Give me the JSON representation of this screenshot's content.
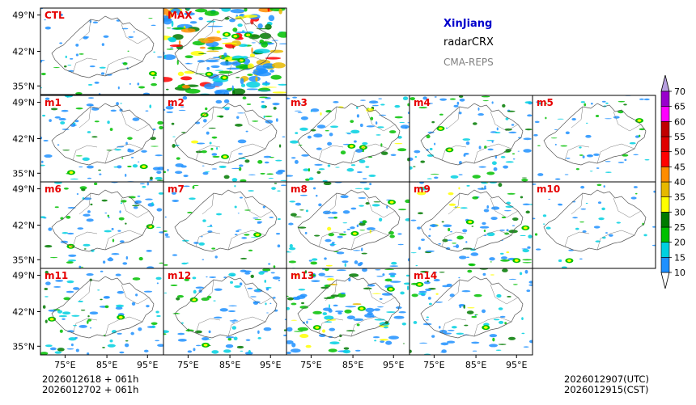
{
  "header": {
    "region": "XinJiang",
    "product": "radarCRX",
    "system": "CMA-REPS",
    "region_color": "#0000cc",
    "system_color": "#808080"
  },
  "panels": [
    {
      "label": "CTL",
      "intensity": 0.18
    },
    {
      "label": "MAX",
      "intensity": 1.0
    },
    {
      "label": "m1",
      "intensity": 0.32
    },
    {
      "label": "m2",
      "intensity": 0.38
    },
    {
      "label": "m3",
      "intensity": 0.4
    },
    {
      "label": "m4",
      "intensity": 0.34
    },
    {
      "label": "m5",
      "intensity": 0.2
    },
    {
      "label": "m6",
      "intensity": 0.3
    },
    {
      "label": "m7",
      "intensity": 0.2
    },
    {
      "label": "m8",
      "intensity": 0.36
    },
    {
      "label": "m9",
      "intensity": 0.42
    },
    {
      "label": "m10",
      "intensity": 0.12
    },
    {
      "label": "m11",
      "intensity": 0.34
    },
    {
      "label": "m12",
      "intensity": 0.38
    },
    {
      "label": "m13",
      "intensity": 0.55
    },
    {
      "label": "m14",
      "intensity": 0.36
    }
  ],
  "axes": {
    "lat_ticks": [
      "49°N",
      "42°N",
      "35°N"
    ],
    "lon_ticks": [
      "75°E",
      "85°E",
      "95°E"
    ]
  },
  "colorbar": {
    "levels": [
      "10",
      "15",
      "20",
      "25",
      "30",
      "35",
      "40",
      "45",
      "50",
      "55",
      "60",
      "65",
      "70"
    ],
    "colors": [
      "#1e90ff",
      "#00d0e0",
      "#00c000",
      "#007a00",
      "#ffff00",
      "#e6b800",
      "#ff8c00",
      "#ff0000",
      "#e00000",
      "#c00000",
      "#ff00ff",
      "#9900cc",
      "#b8a0e0",
      "#ffffff"
    ]
  },
  "time_info": {
    "init_line1": "2026012618  +  061h",
    "init_line2": "2026012702  +  061h",
    "valid_utc": "2026012907(UTC)",
    "valid_cst": "2026012915(CST)"
  }
}
